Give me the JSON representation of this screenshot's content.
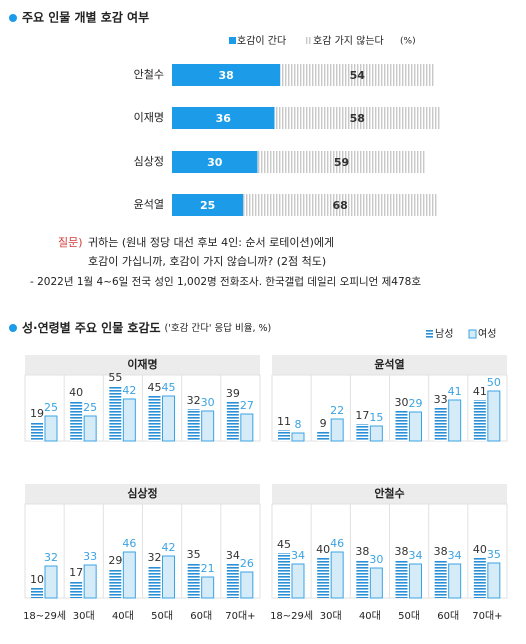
{
  "chart_data": [
    {
      "type": "bar",
      "orientation": "horizontal",
      "stacked": true,
      "title": "주요 인물 개별 호감 여부",
      "unit": "(%)",
      "categories": [
        "안철수",
        "이재명",
        "심상정",
        "윤석열"
      ],
      "series": [
        {
          "name": "호감이 간다",
          "color": "#1b9be8",
          "values": [
            38,
            36,
            30,
            25
          ]
        },
        {
          "name": "호감 가지 않는다",
          "color": "#c8c8c8",
          "values": [
            54,
            58,
            59,
            68
          ]
        }
      ],
      "question": {
        "label": "질문)",
        "lines": [
          "귀하는 (원내 정당 대선 후보 4인: 순서 로테이션)에게",
          "호감이 가십니까, 호감이 가지 않습니까? (2점 척도)"
        ]
      },
      "source": "- 2022년 1월 4~6일 전국 성인 1,002명 전화조사. 한국갤럽 데일리 오피니언 제478호"
    },
    {
      "type": "grouped-bar",
      "title": "성·연령별 주요 인물 호감도",
      "subtitle": "('호감 간다' 응답 비율, %)",
      "categories": [
        "18~29세",
        "30대",
        "40대",
        "50대",
        "60대",
        "70대+"
      ],
      "series": [
        {
          "name": "남성",
          "color": "#2a8fd6"
        },
        {
          "name": "여성",
          "color": "#3aa3e3"
        }
      ],
      "panels": [
        {
          "title": "이재명",
          "values": [
            [
              19,
              40,
              55,
              45,
              32,
              39
            ],
            [
              25,
              25,
              42,
              45,
              30,
              27
            ]
          ]
        },
        {
          "title": "윤석열",
          "values": [
            [
              11,
              9,
              17,
              30,
              33,
              41
            ],
            [
              8,
              22,
              15,
              29,
              41,
              50
            ]
          ]
        },
        {
          "title": "심상정",
          "values": [
            [
              10,
              17,
              29,
              32,
              35,
              34
            ],
            [
              32,
              33,
              46,
              42,
              21,
              26
            ]
          ]
        },
        {
          "title": "안철수",
          "values": [
            [
              45,
              40,
              38,
              38,
              38,
              40
            ],
            [
              34,
              46,
              30,
              34,
              34,
              35
            ]
          ]
        }
      ]
    }
  ]
}
